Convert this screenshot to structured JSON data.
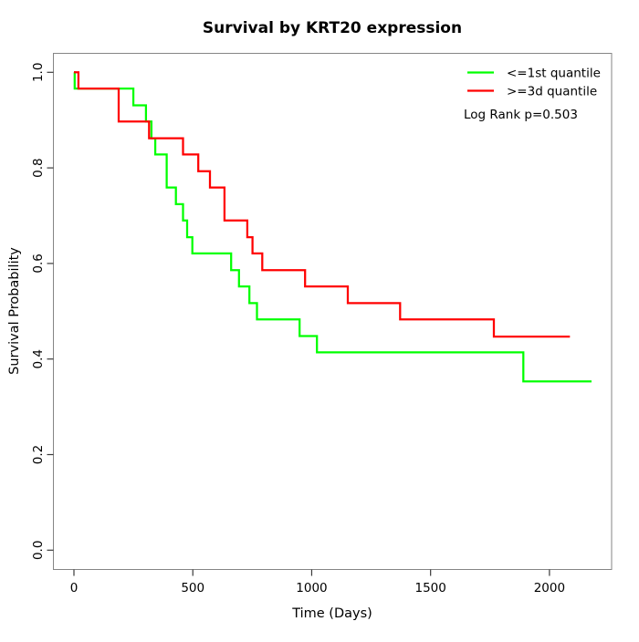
{
  "page": {
    "background": "#ffffff"
  },
  "chart_data": {
    "type": "line",
    "variant": "kaplan_meier_step",
    "title": "Survival by KRT20 expression",
    "xlabel": "Time (Days)",
    "ylabel": "Survival Probability",
    "xlim": [
      0,
      2175
    ],
    "ylim": [
      0,
      1
    ],
    "xticks": [
      0,
      500,
      1000,
      1500,
      2000
    ],
    "yticks": [
      "0.0",
      "0.2",
      "0.4",
      "0.6",
      "0.8",
      "1.0"
    ],
    "grid": false,
    "legend_position": "top-right",
    "annotation": "Log Rank p=0.503",
    "frame_color": "#858585",
    "tick_color": "#3a3a3a",
    "series": [
      {
        "name": "<=1st quantile",
        "color": "#00FF00",
        "start": [
          0,
          1.0
        ],
        "steps": [
          [
            3,
            0.966
          ],
          [
            250,
            0.931
          ],
          [
            303,
            0.897
          ],
          [
            326,
            0.862
          ],
          [
            342,
            0.828
          ],
          [
            390,
            0.759
          ],
          [
            429,
            0.724
          ],
          [
            459,
            0.69
          ],
          [
            476,
            0.655
          ],
          [
            498,
            0.621
          ],
          [
            661,
            0.586
          ],
          [
            694,
            0.552
          ],
          [
            738,
            0.517
          ],
          [
            770,
            0.483
          ],
          [
            949,
            0.448
          ],
          [
            1022,
            0.414
          ],
          [
            1890,
            0.353
          ]
        ],
        "end_time": 2177
      },
      {
        "name": ">=3d quantile",
        "color": "#FF0000",
        "start": [
          0,
          1.0
        ],
        "steps": [
          [
            19,
            0.966
          ],
          [
            188,
            0.897
          ],
          [
            316,
            0.862
          ],
          [
            459,
            0.828
          ],
          [
            523,
            0.793
          ],
          [
            572,
            0.759
          ],
          [
            633,
            0.69
          ],
          [
            729,
            0.655
          ],
          [
            751,
            0.621
          ],
          [
            792,
            0.586
          ],
          [
            972,
            0.552
          ],
          [
            1152,
            0.517
          ],
          [
            1372,
            0.483
          ],
          [
            1766,
            0.447
          ]
        ],
        "end_time": 2086
      }
    ]
  }
}
